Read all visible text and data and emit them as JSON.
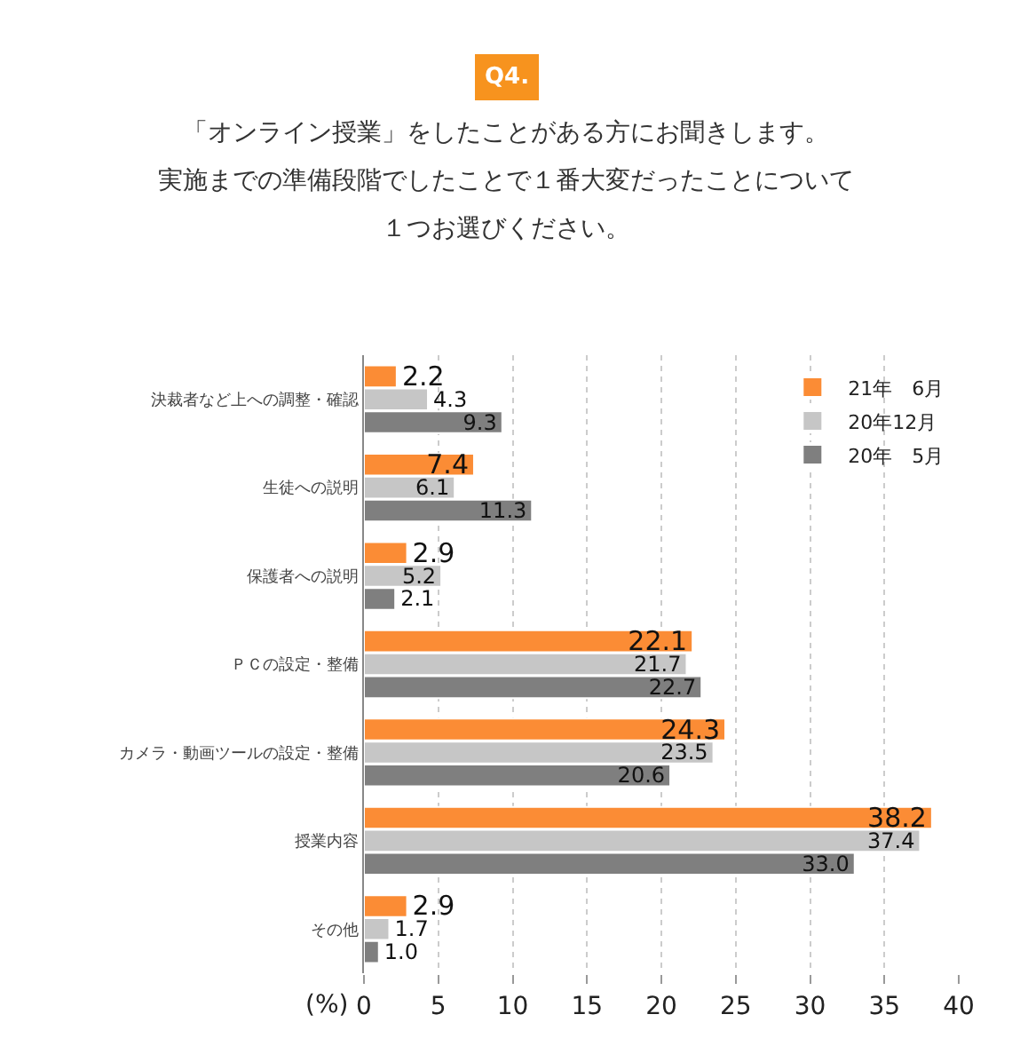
{
  "chart_data": {
    "type": "bar",
    "orientation": "horizontal",
    "title": "Q4.",
    "annotations": [
      "「オンライン授業」をしたことがある方にお聞きします。",
      "実施までの準備段階でしたことで１番大変だったことについて",
      "１つお選びください。"
    ],
    "xlabel": "(%)",
    "categories": [
      "決裁者など上への調整・確認",
      "生徒への説明",
      "保護者への説明",
      "ＰＣの設定・整備",
      "カメラ・動画ツールの設定・整備",
      "授業内容",
      "その他"
    ],
    "series": [
      {
        "name": "21年　6月",
        "color": "#fb8c35",
        "values": [
          2.2,
          7.4,
          2.9,
          22.1,
          24.3,
          38.2,
          2.9
        ],
        "value_labels": [
          "2.2",
          "7.4",
          "2.9",
          "22.1",
          "24.3",
          "38.2",
          "2.9"
        ]
      },
      {
        "name": "20年12月",
        "color": "#c6c6c6",
        "values": [
          4.3,
          6.1,
          5.2,
          21.7,
          23.5,
          37.4,
          1.7
        ],
        "value_labels": [
          "4.3",
          "6.1",
          "5.2",
          "21.7",
          "23.5",
          "37.4",
          "1.7"
        ]
      },
      {
        "name": "20年　5月",
        "color": "#7f7f7f",
        "values": [
          9.3,
          11.3,
          2.1,
          22.7,
          20.6,
          33.0,
          1.0
        ],
        "value_labels": [
          "9.3",
          "11.3",
          "2.1",
          "22.7",
          "20.6",
          "33.0",
          "1.0"
        ]
      }
    ],
    "xlim": [
      0,
      40
    ],
    "xticks": [
      0,
      5,
      10,
      15,
      20,
      25,
      30,
      35,
      40
    ],
    "grid": "x",
    "legend": "top right"
  }
}
